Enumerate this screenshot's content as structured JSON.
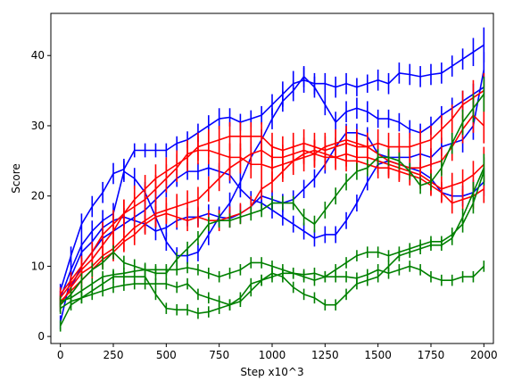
{
  "chart_data": {
    "type": "line",
    "title": "",
    "xlabel": "Step x10^3",
    "ylabel": "Score",
    "xlim": [
      -45,
      2045
    ],
    "ylim": [
      -1,
      46
    ],
    "xticks": [
      0,
      250,
      500,
      750,
      1000,
      1250,
      1500,
      1750,
      2000
    ],
    "yticks": [
      0,
      10,
      20,
      30,
      40
    ],
    "grid": false,
    "legend": "none",
    "x": [
      0,
      50,
      100,
      150,
      200,
      250,
      300,
      350,
      400,
      450,
      500,
      550,
      600,
      650,
      700,
      750,
      800,
      850,
      900,
      950,
      1000,
      1050,
      1100,
      1150,
      1200,
      1250,
      1300,
      1350,
      1400,
      1450,
      1500,
      1550,
      1600,
      1650,
      1700,
      1750,
      1800,
      1850,
      1900,
      1950,
      2000
    ],
    "series": [
      {
        "color": "#0000ff",
        "values": [
          6.5,
          11.5,
          16.0,
          18.5,
          20.5,
          23.2,
          23.8,
          26.5,
          26.5,
          26.5,
          26.5,
          27.5,
          28.0,
          29.0,
          30.0,
          31.0,
          31.2,
          30.5,
          31.0,
          31.5,
          33.0,
          34.5,
          36.0,
          36.5,
          36.0,
          36.0,
          35.5,
          36.0,
          35.5,
          36.0,
          36.5,
          36.0,
          37.5,
          37.3,
          37.0,
          37.3,
          37.5,
          38.5,
          39.5,
          40.5,
          41.5
        ],
        "errors": [
          1.0,
          1.3,
          1.5,
          1.5,
          1.5,
          1.5,
          1.5,
          1.0,
          1.0,
          1.0,
          1.0,
          1.0,
          1.2,
          1.3,
          1.5,
          1.5,
          1.3,
          1.2,
          1.2,
          1.3,
          1.5,
          1.8,
          1.8,
          1.8,
          1.5,
          1.5,
          1.5,
          1.5,
          1.3,
          1.3,
          1.5,
          1.5,
          1.5,
          1.5,
          1.5,
          1.5,
          1.5,
          1.5,
          1.5,
          2.0,
          2.5
        ]
      },
      {
        "color": "#0000ff",
        "values": [
          5.5,
          9.5,
          13.0,
          15.0,
          16.5,
          17.5,
          23.5,
          22.5,
          20.5,
          17.0,
          13.5,
          11.5,
          11.5,
          12.0,
          14.5,
          17.0,
          19.0,
          22.0,
          25.5,
          28.0,
          31.0,
          33.5,
          35.0,
          37.0,
          35.5,
          33.0,
          30.5,
          32.0,
          32.5,
          32.0,
          31.0,
          31.0,
          30.5,
          29.5,
          29.0,
          30.0,
          31.5,
          32.5,
          33.5,
          34.5,
          35.5
        ],
        "errors": [
          1.0,
          1.3,
          1.5,
          1.5,
          1.5,
          1.5,
          1.5,
          1.5,
          1.5,
          1.5,
          1.3,
          1.2,
          1.2,
          1.3,
          1.5,
          1.5,
          1.5,
          1.5,
          1.5,
          1.5,
          1.5,
          1.5,
          1.5,
          1.5,
          1.5,
          1.5,
          1.5,
          1.5,
          1.5,
          1.5,
          1.3,
          1.3,
          1.3,
          1.3,
          1.3,
          1.3,
          1.3,
          1.5,
          1.5,
          1.5,
          1.5
        ]
      },
      {
        "color": "#0000ff",
        "values": [
          2.0,
          8.5,
          12.0,
          13.5,
          15.5,
          16.5,
          17.0,
          16.5,
          16.0,
          15.0,
          15.5,
          16.5,
          17.0,
          17.0,
          17.5,
          17.0,
          16.8,
          17.5,
          18.5,
          20.0,
          19.5,
          19.0,
          19.5,
          21.0,
          22.5,
          24.5,
          27.0,
          29.0,
          29.0,
          28.5,
          26.0,
          25.5,
          25.5,
          25.5,
          26.0,
          25.5,
          27.0,
          27.5,
          28.0,
          30.0,
          38.0
        ],
        "errors": [
          1.0,
          1.2,
          1.3,
          1.3,
          1.3,
          1.3,
          1.3,
          1.3,
          1.3,
          1.3,
          1.3,
          1.3,
          1.3,
          1.3,
          1.3,
          1.3,
          1.3,
          1.3,
          1.3,
          1.3,
          1.3,
          1.3,
          1.3,
          1.3,
          1.3,
          1.3,
          1.3,
          1.3,
          1.3,
          1.3,
          1.3,
          1.3,
          1.3,
          1.3,
          1.3,
          1.3,
          1.3,
          1.5,
          1.8,
          2.0,
          2.5
        ]
      },
      {
        "color": "#0000ff",
        "values": [
          4.5,
          7.0,
          10.0,
          12.0,
          14.0,
          15.0,
          16.0,
          17.0,
          18.0,
          19.5,
          21.0,
          22.5,
          23.5,
          23.5,
          24.0,
          23.5,
          23.0,
          21.0,
          19.5,
          19.0,
          18.0,
          17.0,
          16.0,
          15.0,
          14.0,
          14.5,
          14.5,
          16.5,
          19.0,
          22.0,
          24.5,
          25.0,
          24.5,
          24.0,
          23.5,
          22.5,
          20.5,
          20.0,
          20.0,
          20.5,
          22.0
        ],
        "errors": [
          1.0,
          1.2,
          1.2,
          1.2,
          1.2,
          1.2,
          1.2,
          1.2,
          1.2,
          1.2,
          1.2,
          1.2,
          1.2,
          1.2,
          1.2,
          1.2,
          1.2,
          1.2,
          1.2,
          1.2,
          1.2,
          1.2,
          1.2,
          1.2,
          1.2,
          1.2,
          1.2,
          1.2,
          1.2,
          1.2,
          1.2,
          1.2,
          1.2,
          1.2,
          1.2,
          1.2,
          1.2,
          1.2,
          1.5,
          1.8,
          2.0
        ]
      },
      {
        "color": "#ff0000",
        "values": [
          6.0,
          8.0,
          10.0,
          12.0,
          14.5,
          16.0,
          17.5,
          19.5,
          21.0,
          22.5,
          23.5,
          24.5,
          25.5,
          27.0,
          27.5,
          28.0,
          28.5,
          28.5,
          28.5,
          28.5,
          27.0,
          26.5,
          27.0,
          27.5,
          27.0,
          26.5,
          27.0,
          27.5,
          27.0,
          27.0,
          27.5,
          27.0,
          27.0,
          27.0,
          27.5,
          28.0,
          29.5,
          31.0,
          33.0,
          34.0,
          35.0
        ],
        "errors": [
          1.0,
          1.2,
          1.5,
          1.5,
          1.8,
          2.0,
          2.0,
          2.0,
          2.0,
          2.0,
          2.0,
          2.0,
          2.0,
          2.0,
          2.0,
          2.0,
          2.0,
          2.0,
          2.0,
          2.0,
          2.0,
          2.0,
          2.0,
          2.0,
          2.0,
          2.0,
          2.0,
          2.0,
          2.0,
          2.0,
          2.0,
          2.0,
          2.0,
          2.0,
          2.0,
          2.0,
          2.0,
          2.0,
          2.0,
          2.5,
          2.5
        ]
      },
      {
        "color": "#ff0000",
        "values": [
          5.5,
          7.5,
          9.5,
          11.0,
          13.0,
          15.0,
          17.5,
          18.5,
          19.5,
          21.0,
          22.5,
          24.0,
          26.0,
          26.5,
          26.5,
          26.0,
          25.5,
          25.5,
          24.5,
          24.5,
          24.0,
          24.5,
          25.0,
          25.5,
          26.0,
          27.0,
          27.5,
          28.0,
          27.5,
          27.0,
          26.0,
          25.0,
          24.5,
          24.0,
          24.0,
          24.5,
          25.0,
          27.0,
          29.5,
          31.5,
          30.0
        ],
        "errors": [
          1.0,
          1.2,
          1.5,
          1.5,
          1.8,
          2.0,
          2.0,
          2.0,
          2.0,
          2.0,
          2.0,
          2.0,
          2.0,
          2.0,
          2.0,
          2.0,
          2.0,
          2.0,
          2.0,
          2.0,
          2.0,
          2.0,
          2.0,
          2.0,
          2.0,
          2.0,
          2.0,
          2.0,
          2.0,
          2.0,
          2.0,
          2.0,
          2.0,
          2.0,
          2.0,
          2.0,
          2.0,
          2.0,
          2.0,
          2.5,
          2.5
        ]
      },
      {
        "color": "#ff0000",
        "values": [
          4.5,
          7.0,
          9.0,
          10.0,
          11.5,
          12.5,
          14.0,
          15.5,
          16.5,
          17.5,
          18.0,
          18.5,
          19.0,
          19.5,
          21.0,
          22.5,
          24.0,
          25.0,
          26.0,
          26.5,
          25.5,
          25.5,
          26.0,
          26.5,
          26.0,
          25.5,
          25.5,
          26.0,
          25.5,
          25.5,
          25.0,
          24.5,
          24.0,
          23.5,
          23.0,
          22.0,
          21.0,
          21.5,
          22.0,
          23.0,
          24.5
        ],
        "errors": [
          1.0,
          1.2,
          1.5,
          1.5,
          1.5,
          1.5,
          1.8,
          1.8,
          1.8,
          1.8,
          1.8,
          1.8,
          1.8,
          1.8,
          1.8,
          1.8,
          1.8,
          1.8,
          1.8,
          1.8,
          1.8,
          1.8,
          1.8,
          1.8,
          1.8,
          1.8,
          1.8,
          1.8,
          1.8,
          1.8,
          1.8,
          1.8,
          1.8,
          1.8,
          1.8,
          1.8,
          1.8,
          1.8,
          1.8,
          2.0,
          2.5
        ]
      },
      {
        "color": "#ff0000",
        "values": [
          5.0,
          6.5,
          8.0,
          9.5,
          11.0,
          12.0,
          13.5,
          14.5,
          16.0,
          17.0,
          17.5,
          17.0,
          16.5,
          17.0,
          16.5,
          16.5,
          17.0,
          17.5,
          18.5,
          21.0,
          22.0,
          23.5,
          25.0,
          26.0,
          26.5,
          26.0,
          25.5,
          25.0,
          25.0,
          24.5,
          24.0,
          24.0,
          23.5,
          23.0,
          22.5,
          21.5,
          20.5,
          19.0,
          19.5,
          20.0,
          21.0
        ],
        "errors": [
          1.0,
          1.2,
          1.3,
          1.3,
          1.3,
          1.3,
          1.5,
          1.5,
          1.5,
          1.5,
          1.5,
          1.5,
          1.5,
          1.5,
          1.5,
          1.5,
          1.5,
          1.5,
          1.5,
          1.5,
          1.5,
          1.5,
          1.5,
          1.5,
          1.5,
          1.5,
          1.5,
          1.5,
          1.5,
          1.5,
          1.5,
          1.5,
          1.5,
          1.5,
          1.5,
          1.5,
          1.5,
          1.5,
          1.5,
          1.8,
          2.0
        ]
      },
      {
        "color": "#008000",
        "values": [
          4.5,
          6.0,
          8.0,
          9.5,
          10.5,
          12.0,
          10.5,
          10.0,
          9.5,
          9.0,
          9.0,
          11.0,
          12.5,
          14.0,
          16.0,
          16.5,
          16.5,
          17.0,
          17.5,
          18.0,
          19.0,
          19.0,
          19.0,
          17.0,
          16.0,
          18.0,
          20.0,
          22.0,
          23.5,
          24.0,
          25.5,
          25.5,
          25.0,
          23.5,
          21.5,
          22.0,
          24.0,
          27.5,
          30.5,
          32.5,
          34.5
        ],
        "errors": [
          1.0,
          1.0,
          1.0,
          1.0,
          1.0,
          1.0,
          1.0,
          1.0,
          1.0,
          1.0,
          1.0,
          1.0,
          1.0,
          1.0,
          1.0,
          1.0,
          1.0,
          1.0,
          1.0,
          1.0,
          1.0,
          1.0,
          1.0,
          1.2,
          1.2,
          1.2,
          1.2,
          1.2,
          1.2,
          1.2,
          1.2,
          1.2,
          1.2,
          1.2,
          1.2,
          1.2,
          1.2,
          1.5,
          1.8,
          2.0,
          2.5
        ]
      },
      {
        "color": "#008000",
        "values": [
          5.0,
          5.5,
          6.5,
          7.5,
          8.5,
          8.8,
          9.0,
          9.3,
          9.5,
          9.5,
          9.5,
          9.5,
          9.8,
          9.5,
          9.0,
          8.5,
          9.0,
          9.5,
          10.5,
          10.5,
          10.0,
          9.5,
          9.0,
          8.5,
          8.0,
          8.5,
          9.5,
          10.5,
          11.5,
          12.0,
          12.0,
          11.5,
          12.0,
          12.5,
          13.0,
          13.5,
          13.5,
          14.5,
          16.0,
          19.0,
          23.5
        ],
        "errors": [
          0.8,
          0.8,
          0.8,
          0.8,
          0.8,
          0.8,
          0.8,
          0.8,
          0.8,
          0.8,
          0.8,
          0.8,
          0.8,
          0.8,
          0.8,
          0.8,
          0.8,
          0.8,
          0.8,
          0.8,
          0.8,
          0.8,
          0.8,
          0.8,
          0.8,
          0.8,
          0.8,
          0.8,
          0.8,
          0.8,
          0.8,
          0.8,
          0.8,
          0.8,
          0.8,
          0.8,
          0.8,
          1.0,
          1.2,
          1.5,
          2.0
        ]
      },
      {
        "color": "#008000",
        "values": [
          4.0,
          5.0,
          5.5,
          6.0,
          6.5,
          7.0,
          7.3,
          7.5,
          7.5,
          7.5,
          7.5,
          7.0,
          7.5,
          6.0,
          5.5,
          5.0,
          4.5,
          5.0,
          6.5,
          8.0,
          9.0,
          8.5,
          7.0,
          6.0,
          5.5,
          4.5,
          4.5,
          6.0,
          7.5,
          8.0,
          8.5,
          10.0,
          11.5,
          12.0,
          12.5,
          13.0,
          13.0,
          14.0,
          17.0,
          20.5,
          24.0
        ],
        "errors": [
          0.8,
          0.8,
          0.8,
          0.8,
          0.8,
          0.8,
          0.8,
          0.8,
          0.8,
          0.8,
          0.8,
          0.8,
          0.8,
          0.8,
          0.8,
          0.8,
          0.8,
          0.8,
          0.8,
          0.8,
          0.8,
          0.8,
          0.8,
          0.8,
          0.8,
          0.8,
          0.8,
          0.8,
          0.8,
          0.8,
          0.8,
          0.8,
          0.8,
          0.8,
          0.8,
          0.8,
          0.8,
          1.0,
          1.2,
          1.5,
          2.0
        ]
      },
      {
        "color": "#008000",
        "values": [
          1.5,
          4.5,
          5.5,
          6.5,
          7.5,
          8.5,
          8.5,
          8.5,
          8.5,
          6.0,
          4.0,
          3.8,
          3.8,
          3.3,
          3.5,
          4.0,
          4.5,
          5.5,
          7.5,
          8.0,
          8.5,
          9.0,
          9.0,
          8.8,
          9.0,
          8.5,
          8.5,
          8.5,
          8.3,
          8.8,
          9.5,
          9.0,
          9.5,
          10.0,
          9.5,
          8.5,
          8.0,
          8.0,
          8.5,
          8.5,
          10.0
        ],
        "errors": [
          0.8,
          0.8,
          0.8,
          0.8,
          0.8,
          0.8,
          0.8,
          0.8,
          0.8,
          0.8,
          0.8,
          0.8,
          0.8,
          0.8,
          0.8,
          0.8,
          0.8,
          0.8,
          0.8,
          0.8,
          0.8,
          0.8,
          0.8,
          0.8,
          0.8,
          0.8,
          0.8,
          0.8,
          0.8,
          0.8,
          0.8,
          0.8,
          0.8,
          0.8,
          0.8,
          0.8,
          0.8,
          0.8,
          0.8,
          0.8,
          0.8
        ]
      }
    ]
  }
}
